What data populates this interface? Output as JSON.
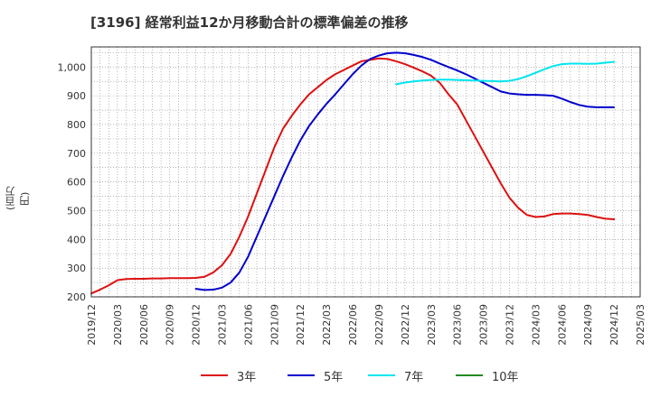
{
  "chart_data": {
    "type": "line",
    "title": "[3196]  経常利益12か月移動合計の標準偏差の推移",
    "ylabel": "(百万円)",
    "xlabel": "",
    "ylim": [
      200,
      1070
    ],
    "yticks": [
      200,
      300,
      400,
      500,
      600,
      700,
      800,
      900,
      1000
    ],
    "ytick_labels": [
      "200",
      "300",
      "400",
      "500",
      "600",
      "700",
      "800",
      "900",
      "1,000"
    ],
    "xlim": [
      "2019-12",
      "2025-03"
    ],
    "xticks": [
      "2019/12",
      "2020/03",
      "2020/06",
      "2020/09",
      "2020/12",
      "2021/03",
      "2021/06",
      "2021/09",
      "2021/12",
      "2022/03",
      "2022/06",
      "2022/09",
      "2022/12",
      "2023/03",
      "2023/06",
      "2023/09",
      "2023/12",
      "2024/03",
      "2024/06",
      "2024/09",
      "2024/12",
      "2025/03"
    ],
    "grid": true,
    "legend_position": "bottom",
    "series": [
      {
        "name": "3年",
        "color": "#dd1111",
        "points": [
          [
            "2019-12",
            212
          ],
          [
            "2020-01",
            225
          ],
          [
            "2020-02",
            240
          ],
          [
            "2020-03",
            258
          ],
          [
            "2020-04",
            262
          ],
          [
            "2020-05",
            263
          ],
          [
            "2020-06",
            263
          ],
          [
            "2020-07",
            264
          ],
          [
            "2020-08",
            264
          ],
          [
            "2020-09",
            265
          ],
          [
            "2020-10",
            265
          ],
          [
            "2020-11",
            265
          ],
          [
            "2020-12",
            266
          ],
          [
            "2021-01",
            270
          ],
          [
            "2021-02",
            285
          ],
          [
            "2021-03",
            310
          ],
          [
            "2021-04",
            350
          ],
          [
            "2021-05",
            410
          ],
          [
            "2021-06",
            480
          ],
          [
            "2021-07",
            560
          ],
          [
            "2021-08",
            640
          ],
          [
            "2021-09",
            720
          ],
          [
            "2021-10",
            785
          ],
          [
            "2021-11",
            830
          ],
          [
            "2021-12",
            870
          ],
          [
            "2022-01",
            905
          ],
          [
            "2022-02",
            930
          ],
          [
            "2022-03",
            955
          ],
          [
            "2022-04",
            975
          ],
          [
            "2022-05",
            990
          ],
          [
            "2022-06",
            1005
          ],
          [
            "2022-07",
            1020
          ],
          [
            "2022-08",
            1025
          ],
          [
            "2022-09",
            1030
          ],
          [
            "2022-10",
            1028
          ],
          [
            "2022-11",
            1020
          ],
          [
            "2022-12",
            1010
          ],
          [
            "2023-01",
            998
          ],
          [
            "2023-02",
            985
          ],
          [
            "2023-03",
            970
          ],
          [
            "2023-04",
            945
          ],
          [
            "2023-05",
            905
          ],
          [
            "2023-06",
            870
          ],
          [
            "2023-07",
            815
          ],
          [
            "2023-08",
            760
          ],
          [
            "2023-09",
            705
          ],
          [
            "2023-10",
            650
          ],
          [
            "2023-11",
            595
          ],
          [
            "2023-12",
            545
          ],
          [
            "2024-01",
            510
          ],
          [
            "2024-02",
            485
          ],
          [
            "2024-03",
            478
          ],
          [
            "2024-04",
            480
          ],
          [
            "2024-05",
            488
          ],
          [
            "2024-06",
            490
          ],
          [
            "2024-07",
            490
          ],
          [
            "2024-08",
            488
          ],
          [
            "2024-09",
            485
          ],
          [
            "2024-10",
            478
          ],
          [
            "2024-11",
            472
          ],
          [
            "2024-12",
            470
          ]
        ]
      },
      {
        "name": "5年",
        "color": "#0000cc",
        "points": [
          [
            "2020-12",
            228
          ],
          [
            "2021-01",
            224
          ],
          [
            "2021-02",
            225
          ],
          [
            "2021-03",
            232
          ],
          [
            "2021-04",
            250
          ],
          [
            "2021-05",
            285
          ],
          [
            "2021-06",
            340
          ],
          [
            "2021-07",
            410
          ],
          [
            "2021-08",
            480
          ],
          [
            "2021-09",
            550
          ],
          [
            "2021-10",
            620
          ],
          [
            "2021-11",
            685
          ],
          [
            "2021-12",
            745
          ],
          [
            "2022-01",
            795
          ],
          [
            "2022-02",
            835
          ],
          [
            "2022-03",
            872
          ],
          [
            "2022-04",
            905
          ],
          [
            "2022-05",
            940
          ],
          [
            "2022-06",
            975
          ],
          [
            "2022-07",
            1005
          ],
          [
            "2022-08",
            1028
          ],
          [
            "2022-09",
            1040
          ],
          [
            "2022-10",
            1048
          ],
          [
            "2022-11",
            1050
          ],
          [
            "2022-12",
            1048
          ],
          [
            "2023-01",
            1042
          ],
          [
            "2023-02",
            1035
          ],
          [
            "2023-03",
            1025
          ],
          [
            "2023-04",
            1012
          ],
          [
            "2023-05",
            1000
          ],
          [
            "2023-06",
            988
          ],
          [
            "2023-07",
            975
          ],
          [
            "2023-08",
            960
          ],
          [
            "2023-09",
            945
          ],
          [
            "2023-10",
            930
          ],
          [
            "2023-11",
            915
          ],
          [
            "2023-12",
            908
          ],
          [
            "2024-01",
            905
          ],
          [
            "2024-02",
            903
          ],
          [
            "2024-03",
            903
          ],
          [
            "2024-04",
            902
          ],
          [
            "2024-05",
            900
          ],
          [
            "2024-06",
            890
          ],
          [
            "2024-07",
            878
          ],
          [
            "2024-08",
            868
          ],
          [
            "2024-09",
            862
          ],
          [
            "2024-10",
            860
          ],
          [
            "2024-11",
            860
          ],
          [
            "2024-12",
            860
          ]
        ]
      },
      {
        "name": "7年",
        "color": "#00e5ee",
        "points": [
          [
            "2022-11",
            940
          ],
          [
            "2022-12",
            946
          ],
          [
            "2023-01",
            950
          ],
          [
            "2023-02",
            953
          ],
          [
            "2023-03",
            955
          ],
          [
            "2023-04",
            956
          ],
          [
            "2023-05",
            956
          ],
          [
            "2023-06",
            955
          ],
          [
            "2023-07",
            954
          ],
          [
            "2023-08",
            953
          ],
          [
            "2023-09",
            952
          ],
          [
            "2023-10",
            951
          ],
          [
            "2023-11",
            950
          ],
          [
            "2023-12",
            952
          ],
          [
            "2024-01",
            958
          ],
          [
            "2024-02",
            968
          ],
          [
            "2024-03",
            980
          ],
          [
            "2024-04",
            992
          ],
          [
            "2024-05",
            1003
          ],
          [
            "2024-06",
            1010
          ],
          [
            "2024-07",
            1012
          ],
          [
            "2024-08",
            1012
          ],
          [
            "2024-09",
            1011
          ],
          [
            "2024-10",
            1012
          ],
          [
            "2024-11",
            1015
          ],
          [
            "2024-12",
            1018
          ]
        ]
      },
      {
        "name": "10年",
        "color": "#228b22",
        "points": []
      }
    ]
  }
}
